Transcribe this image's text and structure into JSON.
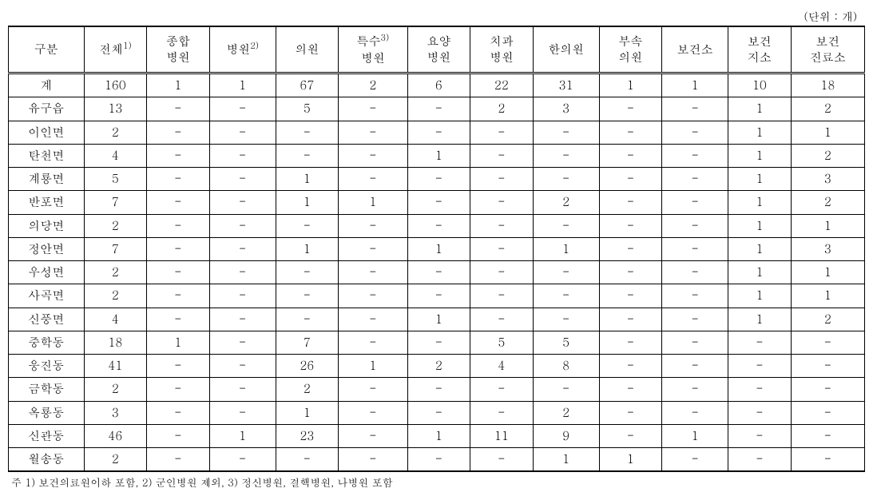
{
  "unit_label": "(단위  : 개)",
  "columns": [
    {
      "label": "구분",
      "fn": ""
    },
    {
      "label": "전체",
      "fn": "1)"
    },
    {
      "label": "종합\n병원",
      "fn": ""
    },
    {
      "label": "병원",
      "fn": "2)"
    },
    {
      "label": "의원",
      "fn": ""
    },
    {
      "label": "특수\n병원",
      "fn": "3)"
    },
    {
      "label": "요양\n병원",
      "fn": ""
    },
    {
      "label": "치과\n병원",
      "fn": ""
    },
    {
      "label": "한의원",
      "fn": ""
    },
    {
      "label": "부속\n의원",
      "fn": ""
    },
    {
      "label": "보건소",
      "fn": ""
    },
    {
      "label": "보건\n지소",
      "fn": ""
    },
    {
      "label": "보건\n진료소",
      "fn": ""
    }
  ],
  "rows": [
    [
      "계",
      "160",
      "1",
      "1",
      "67",
      "2",
      "6",
      "22",
      "31",
      "1",
      "1",
      "10",
      "18"
    ],
    [
      "유구읍",
      "13",
      "-",
      "-",
      "5",
      "-",
      "-",
      "2",
      "3",
      "-",
      "-",
      "1",
      "2"
    ],
    [
      "이인면",
      "2",
      "-",
      "-",
      "-",
      "-",
      "-",
      "-",
      "-",
      "-",
      "-",
      "1",
      "1"
    ],
    [
      "탄천면",
      "4",
      "-",
      "-",
      "-",
      "-",
      "1",
      "-",
      "-",
      "-",
      "-",
      "1",
      "2"
    ],
    [
      "계룡면",
      "5",
      "-",
      "-",
      "1",
      "-",
      "-",
      "-",
      "-",
      "-",
      "-",
      "1",
      "3"
    ],
    [
      "반포면",
      "7",
      "-",
      "-",
      "1",
      "1",
      "-",
      "-",
      "2",
      "-",
      "-",
      "1",
      "2"
    ],
    [
      "의당면",
      "2",
      "-",
      "-",
      "-",
      "-",
      "-",
      "-",
      "-",
      "-",
      "-",
      "1",
      "1"
    ],
    [
      "정안면",
      "7",
      "-",
      "-",
      "1",
      "-",
      "1",
      "-",
      "1",
      "-",
      "-",
      "1",
      "3"
    ],
    [
      "우성면",
      "2",
      "-",
      "-",
      "-",
      "-",
      "-",
      "-",
      "-",
      "-",
      "-",
      "1",
      "1"
    ],
    [
      "사곡면",
      "2",
      "-",
      "-",
      "-",
      "-",
      "-",
      "-",
      "-",
      "-",
      "-",
      "1",
      "1"
    ],
    [
      "신풍면",
      "4",
      "-",
      "-",
      "-",
      "-",
      "1",
      "-",
      "-",
      "-",
      "-",
      "1",
      "2"
    ],
    [
      "중학동",
      "18",
      "1",
      "-",
      "7",
      "-",
      "-",
      "5",
      "5",
      "-",
      "-",
      "-",
      "-"
    ],
    [
      "웅진동",
      "41",
      "-",
      "-",
      "26",
      "1",
      "2",
      "4",
      "8",
      "-",
      "-",
      "-",
      "-"
    ],
    [
      "금학동",
      "2",
      "-",
      "-",
      "2",
      "-",
      "-",
      "-",
      "-",
      "-",
      "-",
      "-",
      "-"
    ],
    [
      "옥룡동",
      "3",
      "-",
      "-",
      "1",
      "-",
      "-",
      "-",
      "2",
      "-",
      "-",
      "-",
      "-"
    ],
    [
      "신관동",
      "46",
      "-",
      "1",
      "23",
      "-",
      "1",
      "11",
      "9",
      "-",
      "1",
      "-",
      "-"
    ],
    [
      "월송동",
      "2",
      "-",
      "-",
      "-",
      "-",
      "-",
      "-",
      "1",
      "1",
      "-",
      "-",
      "-"
    ]
  ],
  "footnote": "주 1) 보건의료원이하 포함, 2) 군인병원 제외, 3) 정신병원, 결핵병원, 나병원 포함",
  "style": {
    "font_family": "Batang, 바탕, serif",
    "header_fontsize": 15,
    "body_fontsize": 15,
    "footnote_fontsize": 13,
    "unit_fontsize": 14,
    "border_color": "#000000",
    "background_color": "#ffffff",
    "text_color": "#000000",
    "header_border_top": "2px solid",
    "first_row_border": "3px double",
    "last_row_border": "2px solid",
    "col_count": 13
  }
}
